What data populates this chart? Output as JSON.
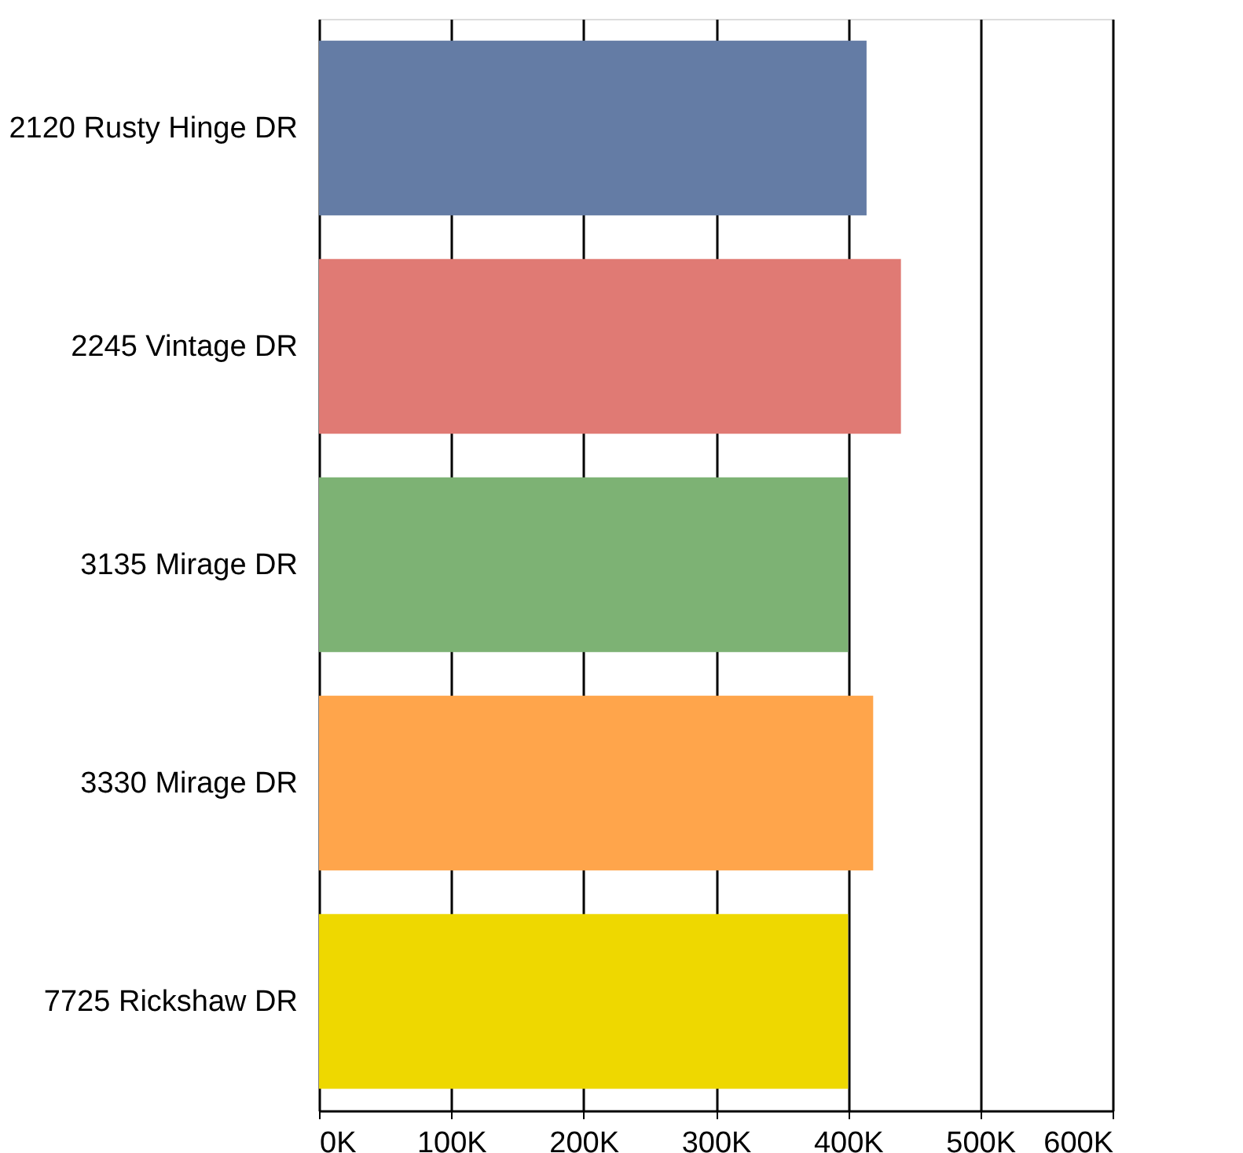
{
  "chart_data": {
    "type": "bar",
    "orientation": "horizontal",
    "categories": [
      "2120 Rusty Hinge DR",
      "2245 Vintage DR",
      "3135 Mirage DR",
      "3330 Mirage DR",
      "7725 Rickshaw DR"
    ],
    "values": [
      414000,
      440000,
      400000,
      419000,
      400000
    ],
    "colors": [
      "#647ca5",
      "#e07a74",
      "#7db274",
      "#ffa54b",
      "#eed800"
    ],
    "xlim": [
      0,
      600000
    ],
    "xticks": [
      {
        "value": 0,
        "label": "0K"
      },
      {
        "value": 100000,
        "label": "100K"
      },
      {
        "value": 200000,
        "label": "200K"
      },
      {
        "value": 300000,
        "label": "300K"
      },
      {
        "value": 400000,
        "label": "400K"
      },
      {
        "value": 500000,
        "label": "500K"
      },
      {
        "value": 600000,
        "label": "600K"
      }
    ],
    "grid": "x"
  }
}
